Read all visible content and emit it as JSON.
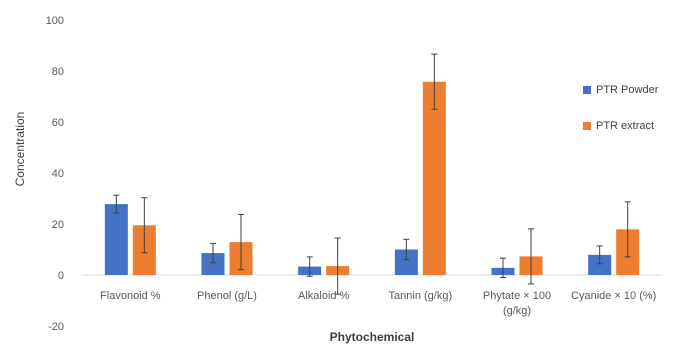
{
  "chart_data": {
    "type": "bar",
    "title": "",
    "xlabel": "Phytochemical",
    "ylabel": "Concentration",
    "ylim": [
      -20,
      100
    ],
    "yticks": [
      -20,
      0,
      20,
      40,
      60,
      80,
      100
    ],
    "grid": false,
    "legend_position": "right",
    "categories": [
      [
        "Flavonoid %"
      ],
      [
        "Phenol (g/L)"
      ],
      [
        "Alkaloid %"
      ],
      [
        "Tannin (g/kg)"
      ],
      [
        "Phytate × 100",
        "(g/kg)"
      ],
      [
        "Cyanide × 10 (%)"
      ]
    ],
    "series": [
      {
        "name": "PTR Powder",
        "color": "#4472c4",
        "values": [
          27.8,
          8.6,
          3.3,
          10.0,
          2.8,
          7.9
        ],
        "errors": [
          3.5,
          3.8,
          3.8,
          4.0,
          3.8,
          3.5
        ]
      },
      {
        "name": "PTR extract",
        "color": "#ed7d31",
        "values": [
          19.5,
          12.9,
          3.5,
          75.8,
          7.3,
          17.9
        ],
        "errors": [
          10.8,
          10.8,
          11.0,
          10.8,
          10.8,
          10.8
        ]
      }
    ]
  }
}
